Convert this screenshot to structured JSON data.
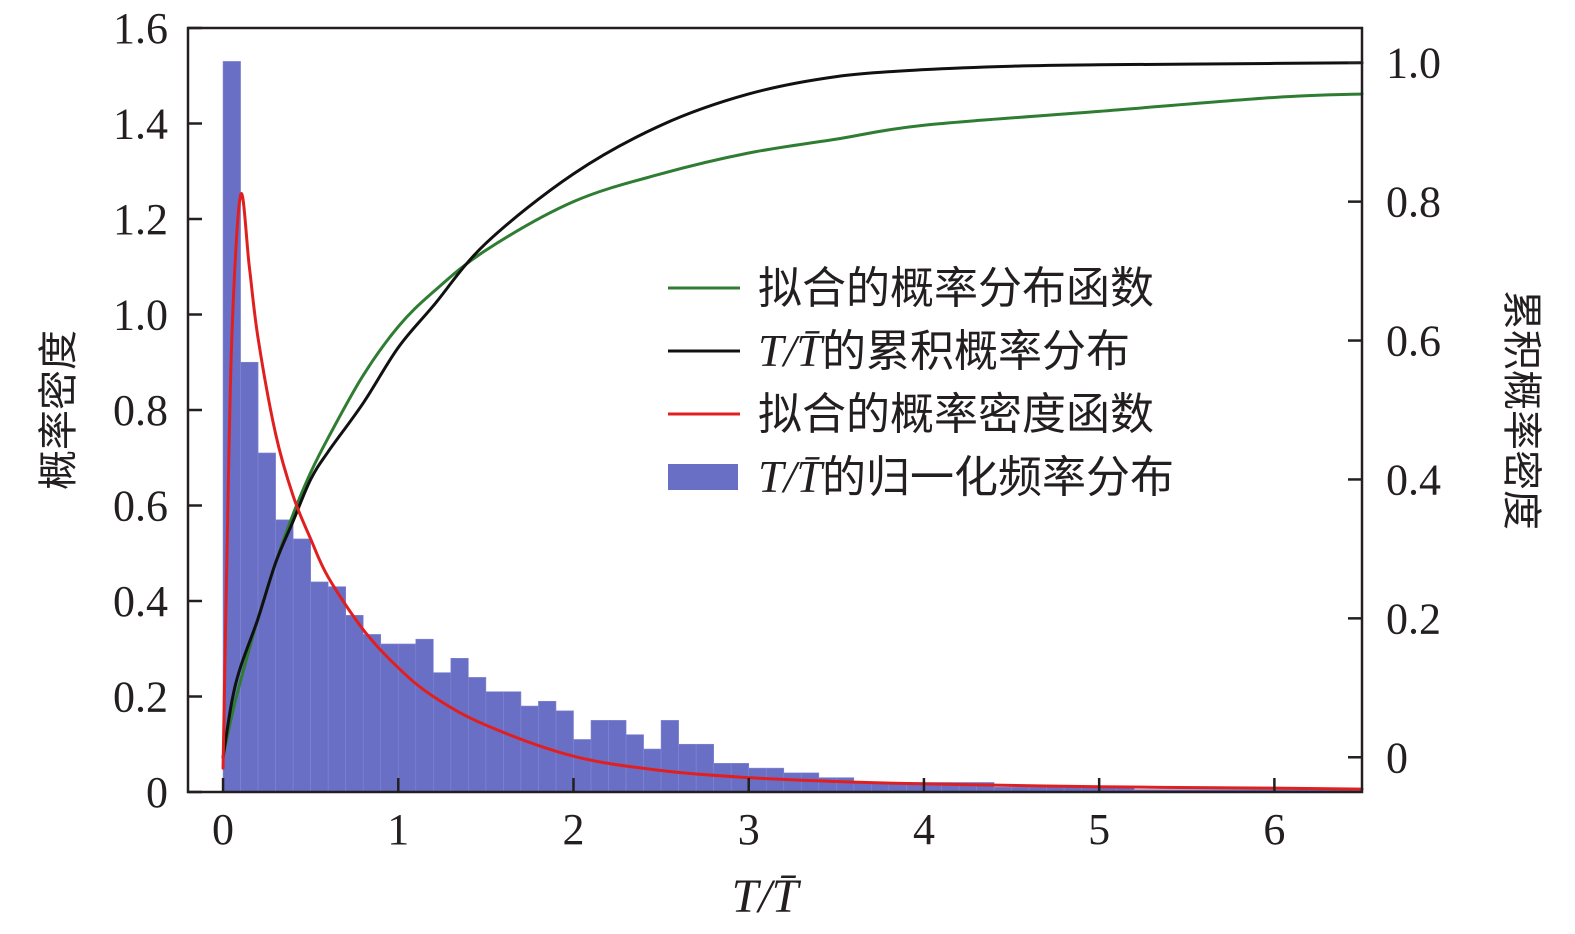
{
  "chart_data": {
    "type": "bar",
    "xlabel": "T/T̄",
    "ylabel_left": "概率密度",
    "ylabel_right": "累积概率密度",
    "xlim": [
      -0.2,
      6.5
    ],
    "ylim_left": [
      0,
      1.6
    ],
    "ylim_right": [
      -0.05,
      1.05
    ],
    "x_ticks": [
      0,
      1,
      2,
      3,
      4,
      5,
      6
    ],
    "y_ticks_left": [
      0,
      0.2,
      0.4,
      0.6,
      0.8,
      1.0,
      1.2,
      1.4,
      1.6
    ],
    "y_tick_labels_left": [
      "0",
      "0.2",
      "0.4",
      "0.6",
      "0.8",
      "1.0",
      "1.2",
      "1.4",
      "1.6"
    ],
    "y_ticks_right": [
      0,
      0.2,
      0.4,
      0.6,
      0.8,
      1.0
    ],
    "y_tick_labels_right": [
      "0",
      "0.2",
      "0.4",
      "0.6",
      "0.8",
      "1.0"
    ],
    "legend_position": "center-right",
    "legend": [
      {
        "label": "拟合的概率分布函数",
        "kind": "line",
        "color": "#2e7d32"
      },
      {
        "label_prefix": "T/T̄",
        "label": "的累积概率分布",
        "kind": "line",
        "color": "#111111"
      },
      {
        "label": "拟合的概率密度函数",
        "kind": "line",
        "color": "#e02020"
      },
      {
        "label_prefix": "T/T̄",
        "label": "的归一化频率分布",
        "kind": "bar",
        "color": "#6a6fc6"
      }
    ],
    "histogram": {
      "name": "T/T̄的归一化频率分布",
      "bin_width": 0.1,
      "bin_start": 0.0,
      "values": [
        1.53,
        0.9,
        0.71,
        0.57,
        0.53,
        0.44,
        0.43,
        0.37,
        0.33,
        0.31,
        0.31,
        0.32,
        0.25,
        0.28,
        0.24,
        0.21,
        0.21,
        0.18,
        0.19,
        0.17,
        0.11,
        0.15,
        0.15,
        0.12,
        0.09,
        0.15,
        0.1,
        0.1,
        0.06,
        0.06,
        0.05,
        0.05,
        0.04,
        0.04,
        0.03,
        0.03,
        0.02,
        0.02,
        0.02,
        0.02,
        0.02,
        0.02,
        0.02,
        0.02,
        0.01,
        0.01,
        0.01,
        0.01,
        0.01,
        0.01,
        0.01,
        0.01,
        0.005,
        0.005,
        0.005,
        0.005,
        0.005,
        0.005,
        0.005,
        0.005,
        0.005,
        0.005,
        0.005,
        0.005,
        0.005
      ]
    },
    "series": [
      {
        "name": "拟合的概率分布函数",
        "axis": "right",
        "color": "#2e7d32",
        "x": [
          0,
          0.05,
          0.1,
          0.2,
          0.3,
          0.4,
          0.5,
          0.6,
          0.8,
          1.0,
          1.2,
          1.5,
          2.0,
          2.5,
          3.0,
          3.5,
          4.0,
          5.0,
          6.0,
          6.5
        ],
        "y": [
          0.0,
          0.06,
          0.11,
          0.2,
          0.28,
          0.35,
          0.41,
          0.46,
          0.55,
          0.62,
          0.67,
          0.73,
          0.8,
          0.84,
          0.87,
          0.89,
          0.91,
          0.93,
          0.95,
          0.955
        ]
      },
      {
        "name": "T/T̄的累积概率分布",
        "axis": "right",
        "color": "#111111",
        "x": [
          0,
          0.05,
          0.1,
          0.2,
          0.3,
          0.4,
          0.5,
          0.6,
          0.8,
          1.0,
          1.2,
          1.5,
          2.0,
          2.5,
          3.0,
          3.5,
          4.0,
          4.5,
          5.0,
          6.0,
          6.5
        ],
        "y": [
          0.0,
          0.08,
          0.13,
          0.2,
          0.28,
          0.34,
          0.4,
          0.44,
          0.51,
          0.59,
          0.65,
          0.74,
          0.84,
          0.91,
          0.955,
          0.98,
          0.99,
          0.995,
          0.997,
          0.999,
          1.0
        ]
      },
      {
        "name": "拟合的概率密度函数",
        "axis": "left",
        "color": "#e02020",
        "x": [
          0,
          0.02,
          0.05,
          0.1,
          0.15,
          0.2,
          0.3,
          0.4,
          0.5,
          0.6,
          0.8,
          1.0,
          1.2,
          1.5,
          2.0,
          2.5,
          3.0,
          3.5,
          4.0,
          5.0,
          6.0,
          6.5
        ],
        "y": [
          0.05,
          0.45,
          0.95,
          1.25,
          1.1,
          0.95,
          0.75,
          0.62,
          0.53,
          0.45,
          0.34,
          0.26,
          0.2,
          0.14,
          0.075,
          0.045,
          0.03,
          0.022,
          0.017,
          0.011,
          0.008,
          0.006
        ]
      }
    ]
  }
}
